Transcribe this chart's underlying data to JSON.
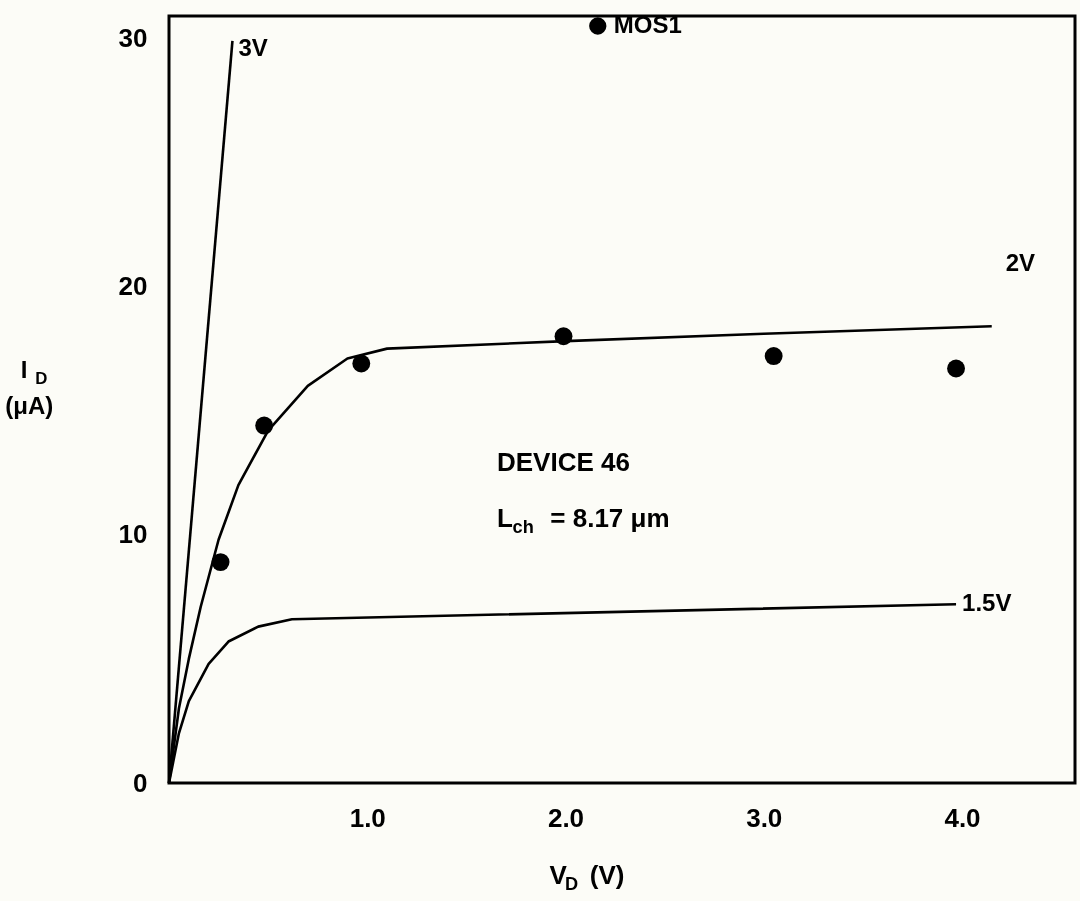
{
  "chart_data": {
    "type": "line",
    "xlabel": "V$_{D}$ (V)",
    "ylabel": "I$_{D}$ (μA)",
    "xlim": [
      0,
      4.57
    ],
    "ylim": [
      0,
      30.9
    ],
    "xticks": [
      {
        "value": 0,
        "label": null
      },
      {
        "value": 1,
        "label": "1.0"
      },
      {
        "value": 2,
        "label": "2.0"
      },
      {
        "value": 3,
        "label": "3.0"
      },
      {
        "value": 4,
        "label": "4.0"
      }
    ],
    "yticks": [
      0,
      10,
      20,
      30
    ],
    "grid": false,
    "legend": "top",
    "line_style": "solid",
    "marker": "none",
    "series": [
      {
        "name": "3V",
        "type": "line",
        "color": "#000000",
        "x": [
          0,
          0.32
        ],
        "values": [
          0,
          29.9
        ]
      },
      {
        "name": "2V",
        "type": "line",
        "color": "#000000",
        "x": [
          0,
          0.05,
          0.1,
          0.16,
          0.25,
          0.35,
          0.5,
          0.7,
          0.9,
          1.1,
          2.0,
          3.0,
          4.15
        ],
        "values": [
          0,
          3,
          5,
          7.1,
          9.8,
          12,
          14.2,
          16,
          17.1,
          17.5,
          17.8,
          18.1,
          18.4
        ]
      },
      {
        "name": "1.5V",
        "type": "line",
        "color": "#000000",
        "x": [
          0,
          0.05,
          0.1,
          0.2,
          0.3,
          0.45,
          0.62,
          3.97
        ],
        "values": [
          0,
          2,
          3.3,
          4.8,
          5.7,
          6.3,
          6.6,
          7.2
        ]
      },
      {
        "name": "MOS1",
        "type": "scatter",
        "marker": "circle",
        "color": "#000000",
        "x": [
          0.26,
          0.48,
          0.97,
          1.99,
          3.05,
          3.97
        ],
        "values": [
          8.9,
          14.4,
          16.9,
          18.0,
          17.2,
          16.7
        ]
      }
    ],
    "annotations": [
      "DEVICE 46",
      "L$_{ch}$ = 8.17 μm"
    ]
  }
}
